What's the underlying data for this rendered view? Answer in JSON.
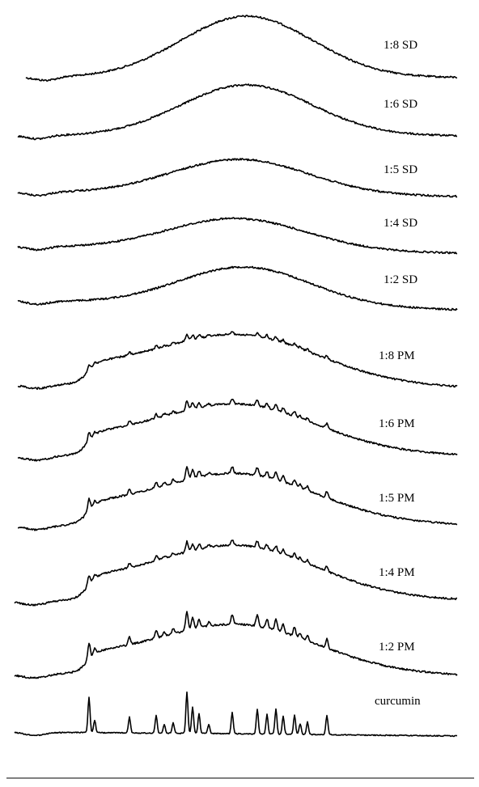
{
  "chart_data": {
    "type": "line",
    "title": "",
    "xlabel": "",
    "ylabel": "",
    "series": [
      {
        "name": "1:8 SD"
      },
      {
        "name": "1:6 SD"
      },
      {
        "name": "1:5 SD"
      },
      {
        "name": "1:4 SD"
      },
      {
        "name": "1:2 SD"
      },
      {
        "name": "1:8 PM"
      },
      {
        "name": "1:6 PM"
      },
      {
        "name": "1:5 PM"
      },
      {
        "name": "1:4 PM"
      },
      {
        "name": "1:2 PM"
      },
      {
        "name": "curcumin"
      }
    ],
    "grid": false,
    "legend": "none"
  }
}
